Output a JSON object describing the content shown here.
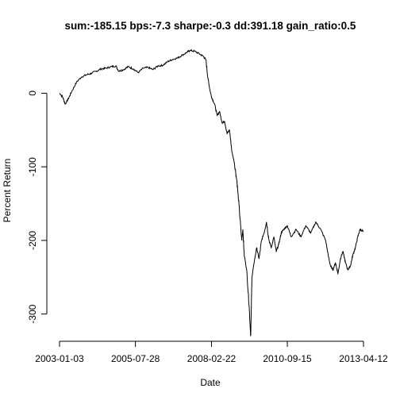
{
  "chart_data": {
    "type": "line",
    "title": "sum:-185.15 bps:-7.3 sharpe:-0.3 dd:391.18 gain_ratio:0.5",
    "xlabel": "Date",
    "ylabel": "Percent Return",
    "x_tick_labels": [
      "2003-01-03",
      "2005-07-28",
      "2008-02-22",
      "2010-09-15",
      "2013-04-12"
    ],
    "y_ticks": [
      0,
      -100,
      -200,
      -300
    ],
    "ylim": [
      -337,
      63
    ],
    "grid": false,
    "legend": "none",
    "series": [
      {
        "color": "#000000",
        "points": [
          [
            "2003-01-03",
            0
          ],
          [
            "2003-02-10",
            -5
          ],
          [
            "2003-03-15",
            -15
          ],
          [
            "2003-04-20",
            -8
          ],
          [
            "2003-06-01",
            2
          ],
          [
            "2003-08-01",
            15
          ],
          [
            "2003-10-01",
            22
          ],
          [
            "2003-12-01",
            25
          ],
          [
            "2004-02-01",
            27
          ],
          [
            "2004-04-01",
            30
          ],
          [
            "2004-06-01",
            33
          ],
          [
            "2004-08-01",
            34
          ],
          [
            "2004-10-01",
            36
          ],
          [
            "2004-12-01",
            37
          ],
          [
            "2005-01-01",
            30
          ],
          [
            "2005-03-01",
            32
          ],
          [
            "2005-05-01",
            36
          ],
          [
            "2005-07-01",
            33
          ],
          [
            "2005-09-01",
            28
          ],
          [
            "2005-11-01",
            34
          ],
          [
            "2006-01-01",
            35
          ],
          [
            "2006-03-01",
            32
          ],
          [
            "2006-05-01",
            37
          ],
          [
            "2006-07-01",
            38
          ],
          [
            "2006-09-01",
            43
          ],
          [
            "2006-11-01",
            46
          ],
          [
            "2007-01-01",
            48
          ],
          [
            "2007-03-01",
            52
          ],
          [
            "2007-05-01",
            56
          ],
          [
            "2007-06-01",
            58
          ],
          [
            "2007-08-01",
            57
          ],
          [
            "2007-10-01",
            53
          ],
          [
            "2007-11-15",
            50
          ],
          [
            "2007-12-15",
            45
          ],
          [
            "2008-01-10",
            20
          ],
          [
            "2008-02-01",
            5
          ],
          [
            "2008-02-22",
            -5
          ],
          [
            "2008-04-01",
            -15
          ],
          [
            "2008-05-01",
            -30
          ],
          [
            "2008-06-01",
            -25
          ],
          [
            "2008-07-01",
            -40
          ],
          [
            "2008-08-01",
            -38
          ],
          [
            "2008-09-01",
            -55
          ],
          [
            "2008-10-01",
            -50
          ],
          [
            "2008-11-01",
            -80
          ],
          [
            "2008-12-01",
            -95
          ],
          [
            "2009-01-01",
            -120
          ],
          [
            "2009-02-01",
            -160
          ],
          [
            "2009-03-01",
            -200
          ],
          [
            "2009-03-15",
            -185
          ],
          [
            "2009-04-01",
            -220
          ],
          [
            "2009-05-01",
            -240
          ],
          [
            "2009-06-01",
            -290
          ],
          [
            "2009-06-20",
            -330
          ],
          [
            "2009-07-05",
            -250
          ],
          [
            "2009-08-01",
            -230
          ],
          [
            "2009-09-01",
            -210
          ],
          [
            "2009-10-01",
            -225
          ],
          [
            "2009-11-01",
            -200
          ],
          [
            "2009-12-01",
            -190
          ],
          [
            "2010-01-01",
            -175
          ],
          [
            "2010-02-01",
            -200
          ],
          [
            "2010-03-01",
            -210
          ],
          [
            "2010-04-01",
            -195
          ],
          [
            "2010-05-01",
            -215
          ],
          [
            "2010-06-01",
            -205
          ],
          [
            "2010-07-01",
            -190
          ],
          [
            "2010-08-01",
            -185
          ],
          [
            "2010-09-15",
            -180
          ],
          [
            "2010-11-01",
            -195
          ],
          [
            "2011-01-01",
            -185
          ],
          [
            "2011-03-01",
            -195
          ],
          [
            "2011-05-01",
            -180
          ],
          [
            "2011-07-01",
            -190
          ],
          [
            "2011-09-01",
            -175
          ],
          [
            "2011-11-01",
            -185
          ],
          [
            "2012-01-01",
            -200
          ],
          [
            "2012-02-01",
            -220
          ],
          [
            "2012-03-01",
            -235
          ],
          [
            "2012-04-01",
            -240
          ],
          [
            "2012-05-01",
            -230
          ],
          [
            "2012-06-01",
            -245
          ],
          [
            "2012-07-01",
            -225
          ],
          [
            "2012-08-01",
            -215
          ],
          [
            "2012-09-01",
            -230
          ],
          [
            "2012-10-01",
            -240
          ],
          [
            "2012-11-01",
            -235
          ],
          [
            "2012-12-01",
            -220
          ],
          [
            "2013-01-01",
            -210
          ],
          [
            "2013-02-01",
            -195
          ],
          [
            "2013-03-01",
            -185
          ],
          [
            "2013-04-12",
            -188
          ]
        ]
      }
    ]
  }
}
